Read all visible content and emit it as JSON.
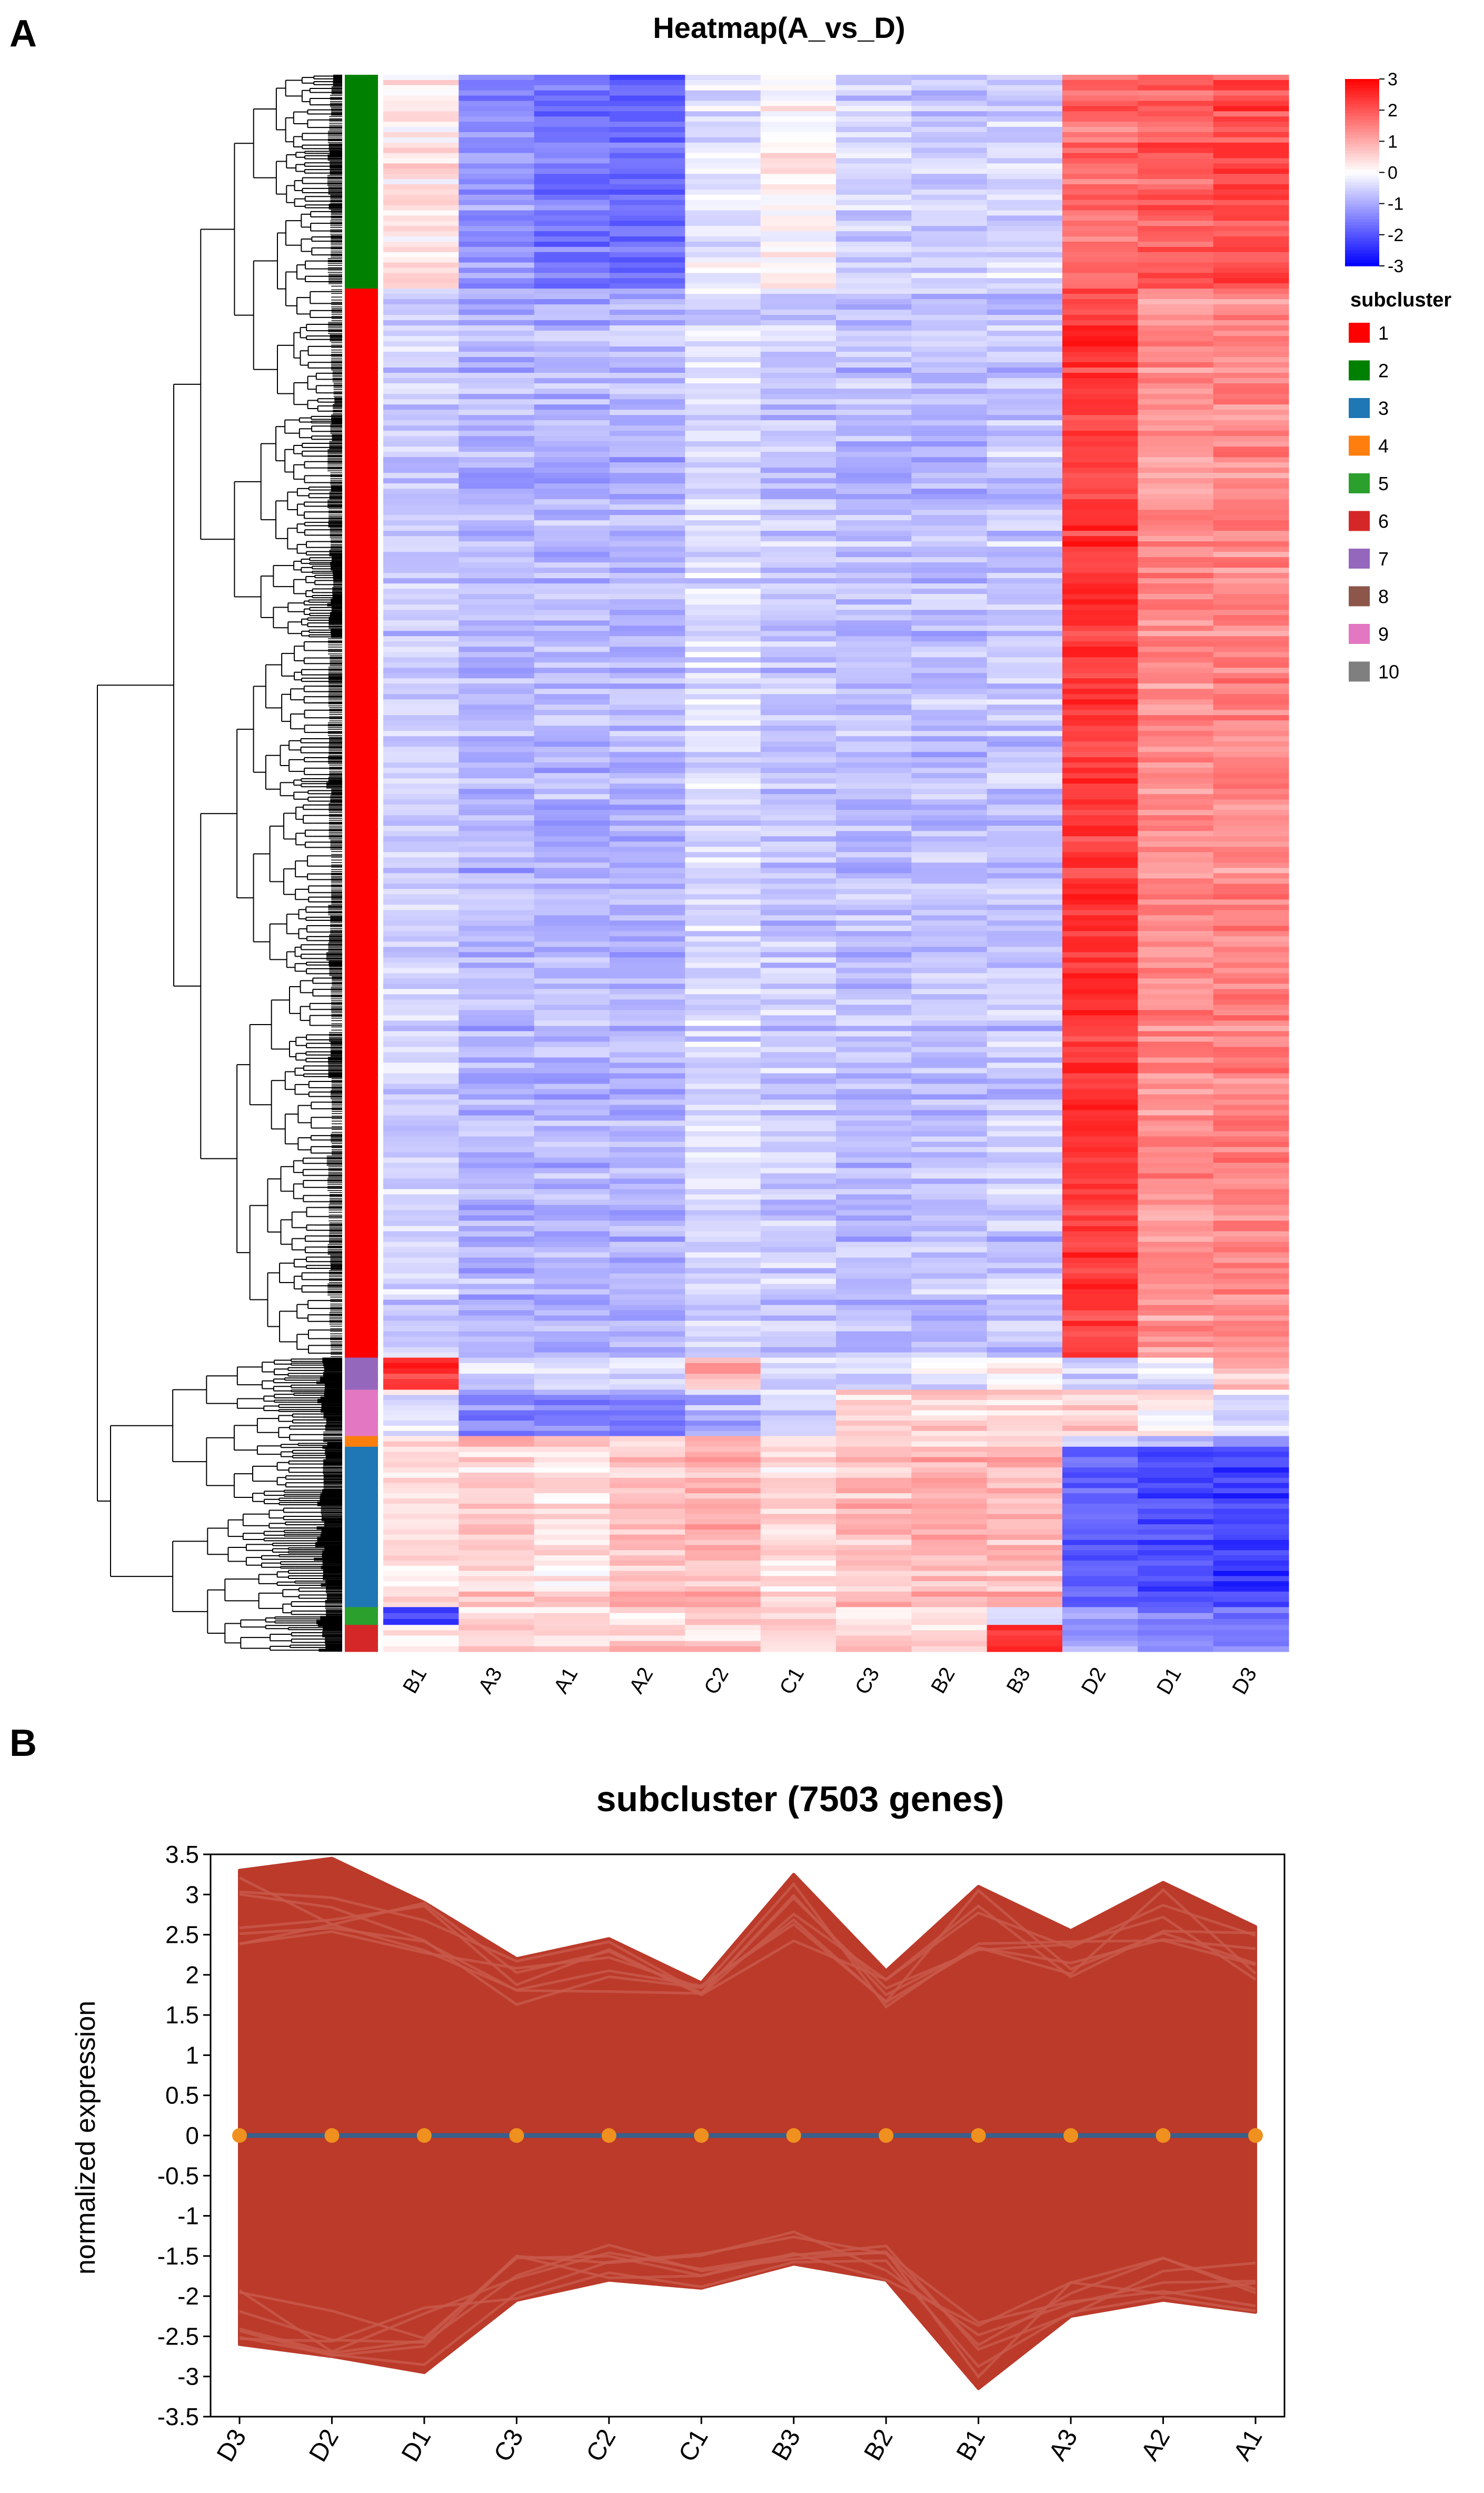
{
  "figure": {
    "panel_a_label": "A",
    "panel_b_label": "B"
  },
  "chart_data": [
    {
      "type": "heatmap",
      "title": "Heatmap(A_vs_D)",
      "columns": [
        "B1",
        "A3",
        "A1",
        "A2",
        "C2",
        "C1",
        "C3",
        "B2",
        "B3",
        "D2",
        "D1",
        "D3"
      ],
      "colorbar": {
        "min": -3,
        "max": 3,
        "ticks": [
          "3",
          "2",
          "1",
          "0",
          "-1",
          "-2",
          "-3"
        ],
        "low_color": "#0000ff",
        "mid_color": "#ffffff",
        "high_color": "#ff0000"
      },
      "legend_title": "subcluster",
      "subclusters": [
        {
          "label": "1",
          "color": "#ff0000"
        },
        {
          "label": "2",
          "color": "#008000"
        },
        {
          "label": "3",
          "color": "#1f77b4"
        },
        {
          "label": "4",
          "color": "#ff7f0e"
        },
        {
          "label": "5",
          "color": "#2ca02c"
        },
        {
          "label": "6",
          "color": "#d62728"
        },
        {
          "label": "7",
          "color": "#9467bd"
        },
        {
          "label": "8",
          "color": "#8c564b"
        },
        {
          "label": "9",
          "color": "#e377c2"
        },
        {
          "label": "10",
          "color": "#7f7f7f"
        }
      ],
      "row_blocks": [
        {
          "cluster": "2",
          "fraction": 0.12,
          "values": [
            0.3,
            -1.3,
            -1.6,
            -1.7,
            -0.3,
            0.1,
            -0.5,
            -0.6,
            -0.5,
            1.7,
            1.9,
            2.1
          ]
        },
        {
          "cluster": "1",
          "fraction": 0.6,
          "values": [
            -0.6,
            -0.9,
            -0.9,
            -0.9,
            -0.5,
            -0.7,
            -0.8,
            -0.8,
            -0.7,
            2.3,
            1.3,
            1.4
          ]
        },
        {
          "cluster": "7",
          "fraction": 0.018,
          "values": [
            2.4,
            -0.4,
            -0.4,
            -0.4,
            0.9,
            -0.3,
            -0.4,
            -0.3,
            0.2,
            -0.4,
            -0.2,
            0.9
          ]
        },
        {
          "cluster": "9",
          "fraction": 0.026,
          "values": [
            -0.2,
            -1.3,
            -1.4,
            -1.5,
            -0.9,
            -0.4,
            0.6,
            0.6,
            0.5,
            0.6,
            0.3,
            -0.3
          ]
        },
        {
          "cluster": "4",
          "fraction": 0.006,
          "values": [
            0.5,
            1.2,
            0.8,
            0.6,
            0.9,
            0.4,
            0.4,
            0.5,
            0.5,
            -0.6,
            -0.8,
            -1.0
          ]
        },
        {
          "cluster": "3",
          "fraction": 0.09,
          "values": [
            0.4,
            0.5,
            0.4,
            0.7,
            0.9,
            0.4,
            0.8,
            0.9,
            0.8,
            -1.9,
            -2.1,
            -2.2
          ]
        },
        {
          "cluster": "5",
          "fraction": 0.01,
          "values": [
            -2.2,
            0.4,
            0.5,
            0.4,
            0.5,
            0.5,
            0.5,
            0.3,
            -0.5,
            -1.2,
            -1.4,
            -1.6
          ]
        },
        {
          "cluster": "6",
          "fraction": 0.015,
          "values": [
            0.4,
            0.7,
            0.6,
            0.6,
            0.6,
            0.5,
            0.6,
            0.5,
            2.4,
            -1.0,
            -1.5,
            -1.6
          ]
        }
      ]
    },
    {
      "type": "line",
      "title": "subcluster (7503 genes)",
      "xlabel": "",
      "ylabel": "normalized expression",
      "categories": [
        "D3",
        "D2",
        "D1",
        "C3",
        "C2",
        "C1",
        "B3",
        "B2",
        "B1",
        "A3",
        "A2",
        "A1"
      ],
      "ylim": [
        -3.5,
        3.5
      ],
      "yticks": [
        "3.5",
        "3",
        "2.5",
        "2",
        "1.5",
        "1",
        "0.5",
        "0",
        "-0.5",
        "-1",
        "-1.5",
        "-2",
        "-2.5",
        "-3",
        "-3.5"
      ],
      "envelope_upper": [
        3.3,
        3.45,
        2.9,
        2.2,
        2.45,
        1.9,
        3.25,
        2.05,
        3.1,
        2.55,
        3.15,
        2.6
      ],
      "envelope_lower": [
        -2.6,
        -2.75,
        -2.95,
        -2.05,
        -1.8,
        -1.9,
        -1.6,
        -1.8,
        -3.15,
        -2.25,
        -2.05,
        -2.2
      ],
      "mean_series": {
        "name": "mean",
        "values": [
          0,
          0,
          0,
          0,
          0,
          0,
          0,
          0,
          0,
          0,
          0,
          0
        ]
      },
      "line_color": "#bb3a2a",
      "mean_color": "#3b5f8a",
      "marker_color": "#f0901e"
    }
  ]
}
